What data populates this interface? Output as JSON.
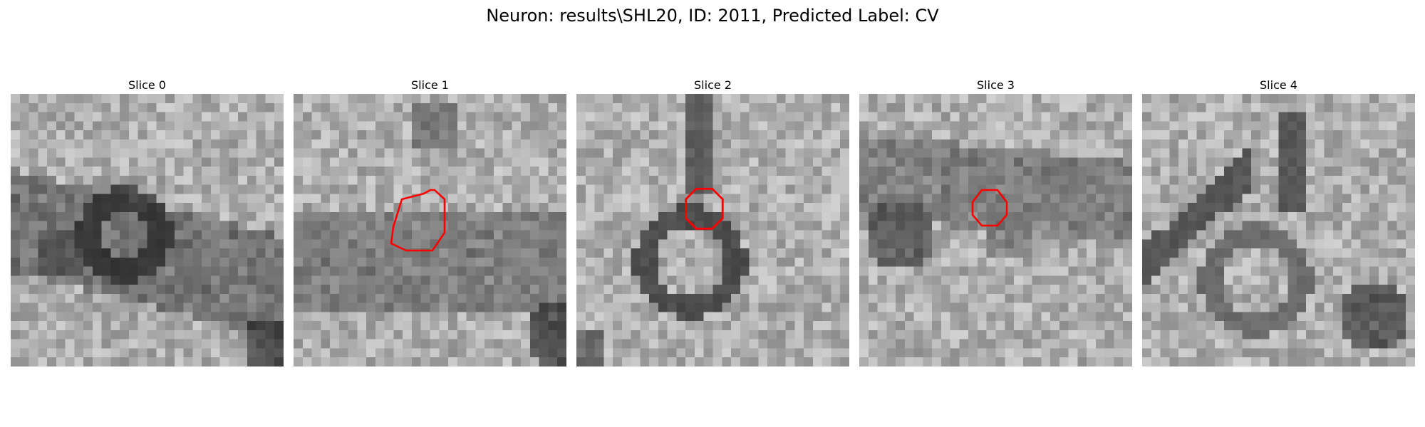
{
  "figure": {
    "title": "Neuron: results\\SHL20, ID: 2011, Predicted Label: CV"
  },
  "panels": [
    {
      "title": "Slice 0",
      "roi": false
    },
    {
      "title": "Slice 1",
      "roi": true
    },
    {
      "title": "Slice 2",
      "roi": true
    },
    {
      "title": "Slice 3",
      "roi": true
    },
    {
      "title": "Slice 4",
      "roi": false
    }
  ],
  "colors": {
    "roi_outline": "#ff0000",
    "colormap": "gray"
  }
}
